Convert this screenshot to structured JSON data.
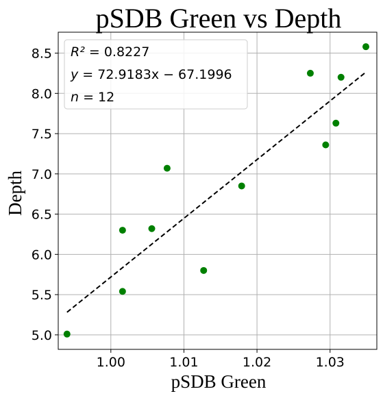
{
  "chart_data": {
    "type": "scatter",
    "title": "pSDB Green vs Depth",
    "xlabel": "pSDB Green",
    "ylabel": "Depth",
    "xlim": [
      0.9928,
      1.0364
    ],
    "ylim": [
      4.82,
      8.76
    ],
    "xticks": [
      1.0,
      1.01,
      1.02,
      1.03
    ],
    "xtick_labels": [
      "1.00",
      "1.01",
      "1.02",
      "1.03"
    ],
    "yticks": [
      5.0,
      5.5,
      6.0,
      6.5,
      7.0,
      7.5,
      8.0,
      8.5
    ],
    "ytick_labels": [
      "5.0",
      "5.5",
      "6.0",
      "6.5",
      "7.0",
      "7.5",
      "8.0",
      "8.5"
    ],
    "grid": true,
    "legend_position": "top-left",
    "annotations": [
      {
        "id": "r2",
        "label": "R²",
        "text": " = 0.8227"
      },
      {
        "id": "eq",
        "label": "y",
        "text": " = 72.9183x − 67.1996"
      },
      {
        "id": "n",
        "label": "n",
        "text": " = 12"
      }
    ],
    "point_color": "#008000",
    "fit_line_color": "#000000",
    "points": [
      {
        "x": 0.994,
        "y": 5.01
      },
      {
        "x": 1.0016,
        "y": 5.54
      },
      {
        "x": 1.0016,
        "y": 6.3
      },
      {
        "x": 1.0056,
        "y": 6.32
      },
      {
        "x": 1.0077,
        "y": 7.07
      },
      {
        "x": 1.0127,
        "y": 5.8
      },
      {
        "x": 1.0179,
        "y": 6.85
      },
      {
        "x": 1.0273,
        "y": 8.25
      },
      {
        "x": 1.0294,
        "y": 7.36
      },
      {
        "x": 1.0308,
        "y": 7.63
      },
      {
        "x": 1.0315,
        "y": 8.2
      },
      {
        "x": 1.0349,
        "y": 8.58
      }
    ],
    "fit_line": {
      "slope": 72.9183,
      "intercept": -67.1996,
      "x_range": [
        0.994,
        1.0349
      ]
    }
  }
}
